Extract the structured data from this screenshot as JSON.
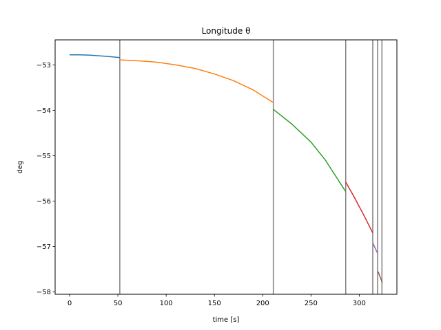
{
  "chart_data": {
    "type": "line",
    "title": "Longitude θ",
    "xlabel": "time [s]",
    "ylabel": "deg",
    "xlim": [
      -15,
      339
    ],
    "ylim": [
      -58.05,
      -52.45
    ],
    "xticks": [
      0,
      50,
      100,
      150,
      200,
      250,
      300
    ],
    "yticks": [
      -53,
      -54,
      -55,
      -56,
      -57,
      -58
    ],
    "xtick_labels": [
      "0",
      "50",
      "100",
      "150",
      "200",
      "250",
      "300"
    ],
    "ytick_labels": [
      "−53",
      "−54",
      "−55",
      "−56",
      "−57",
      "−58"
    ],
    "grid": false,
    "vertical_lines": [
      52,
      211,
      286,
      314,
      319,
      323.5
    ],
    "series": [
      {
        "color": "#1f77b4",
        "x": [
          0,
          10,
          20,
          30,
          40,
          52
        ],
        "y": [
          -52.78,
          -52.78,
          -52.785,
          -52.8,
          -52.815,
          -52.84
        ]
      },
      {
        "color": "#ff7f0e",
        "x": [
          52,
          70,
          90,
          110,
          130,
          150,
          170,
          190,
          211
        ],
        "y": [
          -52.89,
          -52.91,
          -52.94,
          -53.0,
          -53.08,
          -53.2,
          -53.35,
          -53.55,
          -53.83
        ]
      },
      {
        "color": "#2ca02c",
        "x": [
          211,
          230,
          250,
          265,
          275,
          286
        ],
        "y": [
          -53.98,
          -54.3,
          -54.7,
          -55.1,
          -55.43,
          -55.79
        ]
      },
      {
        "color": "#d62728",
        "x": [
          286,
          295,
          305,
          314
        ],
        "y": [
          -55.58,
          -55.92,
          -56.32,
          -56.7
        ]
      },
      {
        "color": "#9467bd",
        "x": [
          314,
          319
        ],
        "y": [
          -56.92,
          -57.15
        ]
      },
      {
        "color": "#8c564b",
        "x": [
          319.5,
          324
        ],
        "y": [
          -57.55,
          -57.8
        ]
      }
    ]
  }
}
